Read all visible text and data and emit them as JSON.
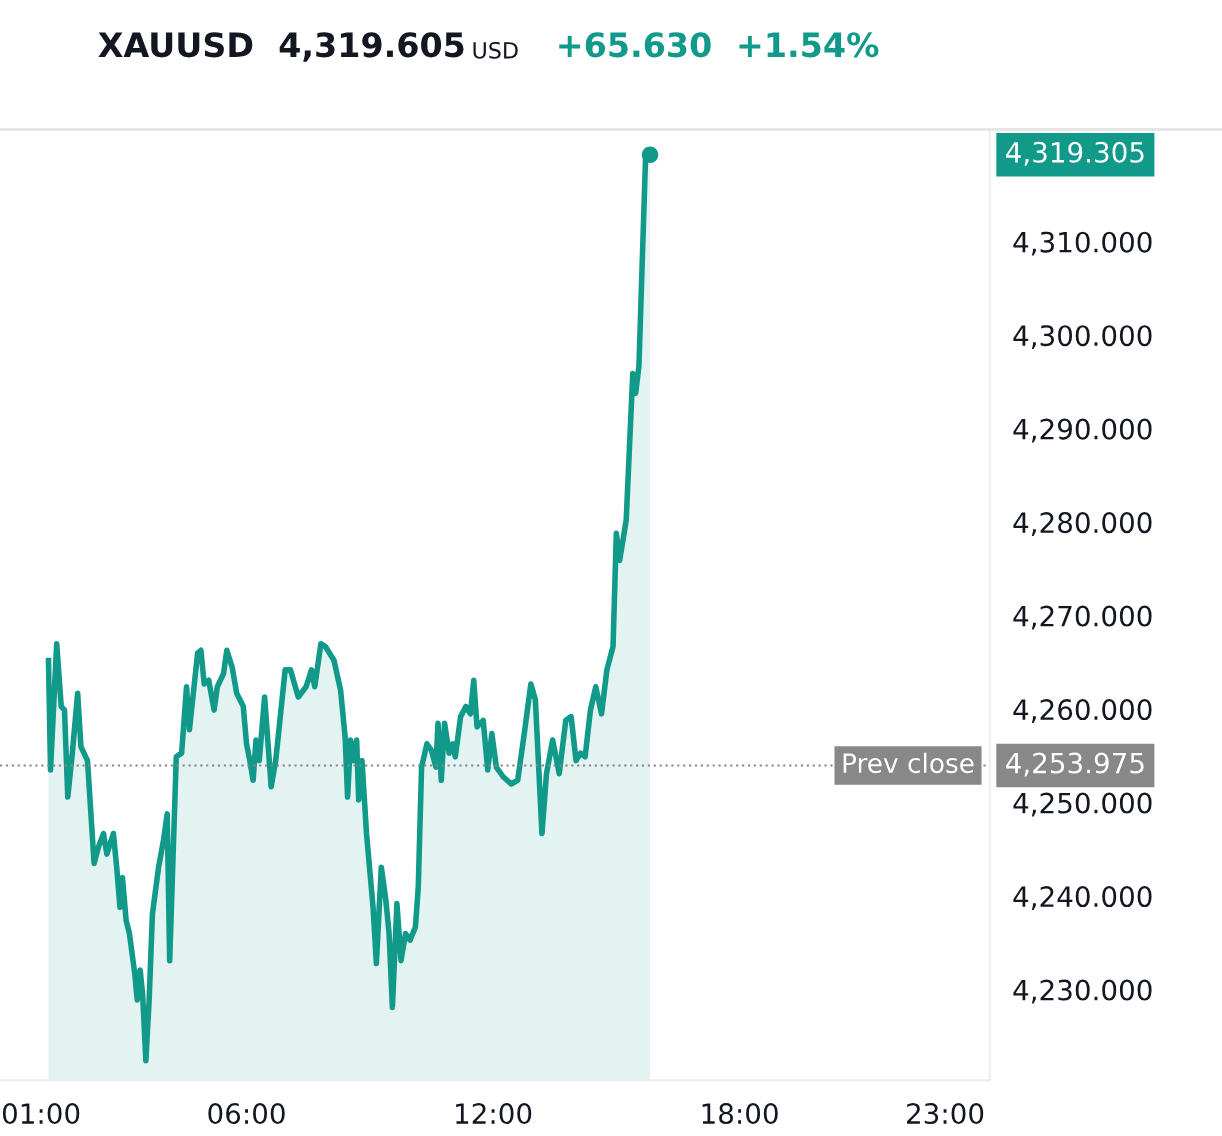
{
  "chart_data": {
    "type": "area",
    "title": "XAUUSD",
    "annotations": [
      "4,319.605",
      "USD",
      "+65.630",
      "+1.54%",
      "4,319.305",
      "4,253.975"
    ],
    "x": [
      1.18,
      1.23,
      1.38,
      1.49,
      1.57,
      1.65,
      1.76,
      1.89,
      1.97,
      2.13,
      2.29,
      2.4,
      2.52,
      2.6,
      2.76,
      2.84,
      2.92,
      2.98,
      3.07,
      3.15,
      3.28,
      3.34,
      3.41,
      3.47,
      3.55,
      3.63,
      3.71,
      3.86,
      3.98,
      4.07,
      4.13,
      4.29,
      4.42,
      4.54,
      4.61,
      4.81,
      4.89,
      4.97,
      5.08,
      5.21,
      5.29,
      5.44,
      5.52,
      5.65,
      5.76,
      5.92,
      6.0,
      6.08,
      6.16,
      6.23,
      6.31,
      6.44,
      6.6,
      6.71,
      6.94,
      7.07,
      7.26,
      7.45,
      7.58,
      7.66,
      7.81,
      7.92,
      8.13,
      8.29,
      8.4,
      8.46,
      8.53,
      8.6,
      8.68,
      8.73,
      8.81,
      8.92,
      9.08,
      9.16,
      9.28,
      9.39,
      9.47,
      9.55,
      9.66,
      9.76,
      9.87,
      9.98,
      10.11,
      10.18,
      10.26,
      10.39,
      10.5,
      10.61,
      10.66,
      10.74,
      10.82,
      10.93,
      11.02,
      11.08,
      11.21,
      11.34,
      11.45,
      11.53,
      11.61,
      11.76,
      11.87,
      11.97,
      12.08,
      12.24,
      12.44,
      12.6,
      12.76,
      12.92,
      13.03,
      13.19,
      13.3,
      13.45,
      13.61,
      13.77,
      13.9,
      14.02,
      14.13,
      14.24,
      14.37,
      14.5,
      14.64,
      14.77,
      14.92,
      15.0,
      15.08,
      15.24,
      15.4,
      15.47,
      15.55,
      15.71,
      15.82
    ],
    "series": [
      {
        "color": "#11998a",
        "values": [
          4265.2,
          4253.5,
          4267.0,
          4260.3,
          4259.9,
          4250.6,
          4255.3,
          4261.7,
          4256.0,
          4254.5,
          4243.5,
          4245.3,
          4246.7,
          4244.5,
          4246.7,
          4243.1,
          4238.8,
          4242.0,
          4237.4,
          4236.0,
          4231.7,
          4228.9,
          4232.1,
          4229.6,
          4222.4,
          4228.9,
          4238.1,
          4243.1,
          4246.0,
          4248.8,
          4233.1,
          4254.9,
          4255.3,
          4262.4,
          4257.8,
          4266.0,
          4266.3,
          4262.7,
          4263.1,
          4259.9,
          4262.4,
          4263.8,
          4266.3,
          4264.5,
          4261.7,
          4260.3,
          4256.3,
          4254.5,
          4252.4,
          4256.7,
          4254.5,
          4261.3,
          4251.7,
          4254.5,
          4264.2,
          4264.2,
          4261.3,
          4262.4,
          4264.2,
          4262.4,
          4267.0,
          4266.7,
          4265.2,
          4262.0,
          4257.0,
          4250.6,
          4256.7,
          4254.5,
          4256.7,
          4250.3,
          4254.5,
          4246.7,
          4238.8,
          4232.8,
          4243.1,
          4239.6,
          4236.0,
          4228.1,
          4239.2,
          4233.1,
          4236.0,
          4235.3,
          4236.7,
          4241.0,
          4253.8,
          4256.3,
          4255.6,
          4253.8,
          4258.5,
          4252.4,
          4258.5,
          4255.3,
          4256.3,
          4254.9,
          4259.2,
          4260.3,
          4259.5,
          4263.1,
          4258.1,
          4258.8,
          4253.5,
          4257.4,
          4253.8,
          4252.8,
          4252.0,
          4252.4,
          4257.4,
          4262.7,
          4261.0,
          4246.7,
          4253.1,
          4256.7,
          4253.1,
          4258.8,
          4259.2,
          4254.5,
          4255.3,
          4254.9,
          4259.9,
          4262.4,
          4259.5,
          4264.2,
          4266.7,
          4278.8,
          4275.9,
          4280.2,
          4295.9,
          4293.8,
          4296.7,
          4318.8,
          4319.3
        ]
      }
    ],
    "xlim": [
      0.0,
      24.09
    ],
    "xticks": [
      {
        "value": 1,
        "label": "01:00"
      },
      {
        "value": 6,
        "label": "06:00"
      },
      {
        "value": 12,
        "label": "12:00"
      },
      {
        "value": 18,
        "label": "18:00"
      },
      {
        "value": 23,
        "label": "23:00"
      }
    ],
    "ylim": [
      4220.3,
      4322.0
    ],
    "yticks": [
      {
        "value": 4230,
        "label": "4,230.000"
      },
      {
        "value": 4240,
        "label": "4,240.000"
      },
      {
        "value": 4250,
        "label": "4,250.000"
      },
      {
        "value": 4260,
        "label": "4,260.000"
      },
      {
        "value": 4270,
        "label": "4,270.000"
      },
      {
        "value": 4280,
        "label": "4,280.000"
      },
      {
        "value": 4290,
        "label": "4,290.000"
      },
      {
        "value": 4300,
        "label": "4,300.000"
      },
      {
        "value": 4310,
        "label": "4,310.000"
      }
    ],
    "ref_lines": [
      {
        "axis": "y",
        "value": 4253.975,
        "label": "Prev close",
        "color": "#888888",
        "line_style": "dotted"
      }
    ],
    "grid": false
  }
}
